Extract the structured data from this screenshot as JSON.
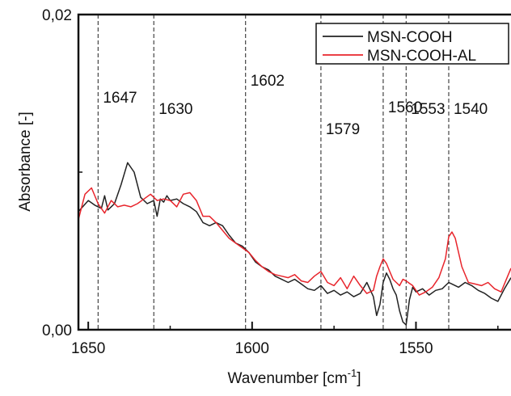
{
  "chart_data": {
    "type": "line",
    "xlabel": "Wavenumber [cm",
    "xlabel_sup": "-1",
    "xlabel_tail": "]",
    "ylabel": "Absorbance [-]",
    "xlim": [
      1653,
      1521
    ],
    "ylim": [
      0.0,
      0.02
    ],
    "x_reversed": true,
    "x_ticks": [
      {
        "value": 1650,
        "label": "1650"
      },
      {
        "value": 1600,
        "label": "1600"
      },
      {
        "value": 1550,
        "label": "1550"
      }
    ],
    "x_minor_ticks": [
      1625,
      1575,
      1525
    ],
    "y_ticks": [
      {
        "value": 0.0,
        "label": "0,00"
      },
      {
        "value": 0.02,
        "label": "0,02"
      }
    ],
    "y_minor_ticks": [
      0.01
    ],
    "reference_lines": [
      {
        "x": 1647,
        "label": "1647",
        "label_y": 0.0144
      },
      {
        "x": 1630,
        "label": "1630",
        "label_y": 0.0137
      },
      {
        "x": 1602,
        "label": "1602",
        "label_y": 0.0155
      },
      {
        "x": 1579,
        "label": "1579",
        "label_y": 0.0124
      },
      {
        "x": 1560,
        "label": "1560",
        "label_y": 0.0138
      },
      {
        "x": 1553,
        "label": "1553",
        "label_y": 0.0137
      },
      {
        "x": 1540,
        "label": "1540",
        "label_y": 0.0137
      }
    ],
    "legend_position": "top-right",
    "series": [
      {
        "name": "MSN-COOH",
        "color": "#222222",
        "x": [
          1653,
          1650,
          1648,
          1646,
          1645,
          1644,
          1642,
          1640,
          1638,
          1636,
          1634,
          1632,
          1630,
          1629,
          1628,
          1627,
          1626,
          1625,
          1623,
          1621,
          1619,
          1617,
          1615,
          1613,
          1611,
          1609,
          1607,
          1605,
          1603,
          1601,
          1599,
          1597,
          1595,
          1593,
          1591,
          1589,
          1587,
          1585,
          1583,
          1581,
          1579,
          1577,
          1575,
          1573,
          1571,
          1569,
          1567,
          1565,
          1563,
          1562,
          1561,
          1560,
          1559,
          1558,
          1557,
          1556,
          1555,
          1554,
          1553,
          1552,
          1551,
          1550,
          1548,
          1546,
          1544,
          1542,
          1541,
          1540,
          1539,
          1537,
          1535,
          1533,
          1531,
          1529,
          1527,
          1525,
          1523,
          1521
        ],
        "y": [
          0.0075,
          0.0082,
          0.0079,
          0.0077,
          0.0085,
          0.0076,
          0.008,
          0.0092,
          0.0106,
          0.01,
          0.0084,
          0.008,
          0.0082,
          0.0072,
          0.0083,
          0.0081,
          0.0085,
          0.0082,
          0.0083,
          0.008,
          0.0078,
          0.0075,
          0.0068,
          0.0066,
          0.0068,
          0.0066,
          0.006,
          0.0055,
          0.0053,
          0.0049,
          0.0043,
          0.004,
          0.0038,
          0.0034,
          0.0032,
          0.003,
          0.0032,
          0.0029,
          0.0026,
          0.0025,
          0.0028,
          0.0023,
          0.0025,
          0.0022,
          0.0024,
          0.0021,
          0.0023,
          0.003,
          0.0021,
          0.0009,
          0.0016,
          0.003,
          0.0036,
          0.0032,
          0.0026,
          0.0022,
          0.0012,
          0.0005,
          0.0003,
          0.0019,
          0.0027,
          0.0024,
          0.0026,
          0.0022,
          0.0025,
          0.0026,
          0.0028,
          0.003,
          0.0029,
          0.0027,
          0.003,
          0.0028,
          0.0025,
          0.0023,
          0.002,
          0.0018,
          0.0026,
          0.0033
        ]
      },
      {
        "name": "MSN-COOH-AL",
        "color": "#e8252c",
        "x": [
          1653,
          1651,
          1649,
          1647,
          1645,
          1643,
          1641,
          1639,
          1637,
          1635,
          1633,
          1631,
          1629,
          1627,
          1625,
          1623,
          1621,
          1619,
          1617,
          1615,
          1613,
          1611,
          1609,
          1607,
          1605,
          1603,
          1601,
          1599,
          1597,
          1595,
          1593,
          1591,
          1589,
          1587,
          1585,
          1583,
          1581,
          1579,
          1577,
          1575,
          1573,
          1571,
          1569,
          1567,
          1565,
          1563,
          1562,
          1561,
          1560,
          1559,
          1558,
          1557,
          1556,
          1555,
          1554,
          1553,
          1551,
          1549,
          1547,
          1545,
          1543,
          1541,
          1540,
          1539,
          1538,
          1536,
          1534,
          1532,
          1530,
          1528,
          1526,
          1524,
          1522,
          1521
        ],
        "y": [
          0.007,
          0.0086,
          0.009,
          0.008,
          0.0074,
          0.0082,
          0.0078,
          0.0079,
          0.0078,
          0.008,
          0.0083,
          0.0086,
          0.0082,
          0.0083,
          0.0082,
          0.0078,
          0.0086,
          0.0087,
          0.0082,
          0.0072,
          0.0072,
          0.0068,
          0.0063,
          0.0058,
          0.0055,
          0.0052,
          0.0049,
          0.0044,
          0.004,
          0.0037,
          0.0035,
          0.0034,
          0.0033,
          0.0035,
          0.0031,
          0.003,
          0.0034,
          0.0037,
          0.003,
          0.0028,
          0.0033,
          0.0026,
          0.0034,
          0.0028,
          0.0023,
          0.0025,
          0.0034,
          0.004,
          0.0045,
          0.0042,
          0.0037,
          0.0032,
          0.003,
          0.0028,
          0.0032,
          0.0031,
          0.0028,
          0.0022,
          0.0024,
          0.0027,
          0.0033,
          0.0045,
          0.0059,
          0.0062,
          0.0058,
          0.004,
          0.003,
          0.0029,
          0.0028,
          0.003,
          0.0026,
          0.0024,
          0.0034,
          0.0039
        ]
      }
    ]
  }
}
